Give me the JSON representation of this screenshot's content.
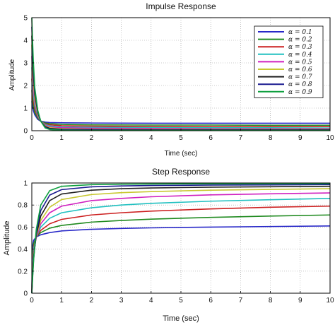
{
  "chart_data": [
    {
      "type": "line",
      "title": "Impulse Response",
      "xlabel": "Time (sec)",
      "ylabel": "Amplitude",
      "xlim": [
        0,
        10
      ],
      "ylim": [
        0,
        5
      ],
      "xticks": [
        "0",
        "1",
        "2",
        "3",
        "4",
        "5",
        "6",
        "7",
        "8",
        "9",
        "10"
      ],
      "yticks": [
        "0",
        "1",
        "2",
        "3",
        "4",
        "5"
      ],
      "legend_position": "top-right",
      "legend": [
        "α = 0.1",
        "α = 0.2",
        "α = 0.3",
        "α = 0.4",
        "α = 0.5",
        "α = 0.6",
        "α = 0.7",
        "α = 0.8",
        "α = 0.9"
      ],
      "series": [
        {
          "name": "α = 0.1",
          "color": "#2828c8",
          "x": [
            0,
            0.02,
            0.05,
            0.1,
            0.2,
            0.3,
            0.45,
            0.6,
            1,
            2,
            4,
            6,
            8,
            10
          ],
          "y": [
            1.3,
            1.1,
            0.9,
            0.7,
            0.5,
            0.42,
            0.38,
            0.36,
            0.35,
            0.34,
            0.33,
            0.33,
            0.33,
            0.33
          ]
        },
        {
          "name": "α = 0.2",
          "color": "#1f8a1f",
          "x": [
            0,
            0.02,
            0.05,
            0.1,
            0.2,
            0.3,
            0.45,
            0.6,
            1,
            2,
            4,
            6,
            8,
            10
          ],
          "y": [
            1.8,
            1.4,
            1.1,
            0.8,
            0.55,
            0.42,
            0.34,
            0.31,
            0.28,
            0.26,
            0.25,
            0.25,
            0.24,
            0.24
          ]
        },
        {
          "name": "α = 0.3",
          "color": "#cc2020",
          "x": [
            0,
            0.02,
            0.05,
            0.1,
            0.2,
            0.3,
            0.45,
            0.6,
            1,
            2,
            4,
            6,
            8,
            10
          ],
          "y": [
            2.3,
            1.8,
            1.35,
            0.95,
            0.6,
            0.42,
            0.3,
            0.26,
            0.22,
            0.2,
            0.19,
            0.18,
            0.18,
            0.18
          ]
        },
        {
          "name": "α = 0.4",
          "color": "#20c0c0",
          "x": [
            0,
            0.02,
            0.05,
            0.1,
            0.2,
            0.3,
            0.45,
            0.6,
            1,
            2,
            4,
            6,
            8,
            10
          ],
          "y": [
            2.8,
            2.2,
            1.6,
            1.1,
            0.65,
            0.42,
            0.27,
            0.21,
            0.17,
            0.15,
            0.14,
            0.13,
            0.13,
            0.12
          ]
        },
        {
          "name": "α = 0.5",
          "color": "#d020c0",
          "x": [
            0,
            0.02,
            0.05,
            0.1,
            0.2,
            0.3,
            0.45,
            0.6,
            1,
            2,
            4,
            6,
            8,
            10
          ],
          "y": [
            3.3,
            2.6,
            1.9,
            1.25,
            0.7,
            0.42,
            0.24,
            0.17,
            0.13,
            0.11,
            0.1,
            0.09,
            0.09,
            0.09
          ]
        },
        {
          "name": "α = 0.6",
          "color": "#c8c830",
          "x": [
            0,
            0.02,
            0.05,
            0.1,
            0.2,
            0.3,
            0.45,
            0.6,
            1,
            2,
            4,
            6,
            8,
            10
          ],
          "y": [
            3.8,
            3.0,
            2.2,
            1.4,
            0.75,
            0.42,
            0.21,
            0.13,
            0.09,
            0.07,
            0.06,
            0.06,
            0.06,
            0.06
          ]
        },
        {
          "name": "α = 0.7",
          "color": "#202020",
          "x": [
            0,
            0.02,
            0.05,
            0.1,
            0.2,
            0.3,
            0.45,
            0.6,
            1,
            2,
            4,
            6,
            8,
            10
          ],
          "y": [
            4.2,
            3.4,
            2.5,
            1.6,
            0.8,
            0.42,
            0.18,
            0.1,
            0.06,
            0.05,
            0.04,
            0.04,
            0.04,
            0.04
          ]
        },
        {
          "name": "α = 0.8",
          "color": "#1a1a90",
          "x": [
            0,
            0.02,
            0.05,
            0.1,
            0.2,
            0.3,
            0.45,
            0.6,
            1,
            2,
            4,
            6,
            8,
            10
          ],
          "y": [
            4.6,
            3.8,
            2.8,
            1.75,
            0.85,
            0.42,
            0.15,
            0.07,
            0.04,
            0.03,
            0.02,
            0.02,
            0.02,
            0.02
          ]
        },
        {
          "name": "α = 0.9",
          "color": "#10a040",
          "x": [
            0,
            0.02,
            0.05,
            0.1,
            0.2,
            0.3,
            0.45,
            0.6,
            1,
            2,
            4,
            6,
            8,
            10
          ],
          "y": [
            5.0,
            4.2,
            3.1,
            1.9,
            0.9,
            0.42,
            0.12,
            0.05,
            0.02,
            0.01,
            0.01,
            0.01,
            0.01,
            0.01
          ]
        }
      ]
    },
    {
      "type": "line",
      "title": "Step Response",
      "xlabel": "Time (sec)",
      "ylabel": "Amplitude",
      "xlim": [
        0,
        10
      ],
      "ylim": [
        0,
        1
      ],
      "xticks": [
        "0",
        "1",
        "2",
        "3",
        "4",
        "5",
        "6",
        "7",
        "8",
        "9",
        "10"
      ],
      "yticks": [
        "0",
        "0.2",
        "0.4",
        "0.6",
        "0.8",
        "1"
      ],
      "series": [
        {
          "name": "α = 0.1",
          "color": "#2828c8",
          "x": [
            0,
            0.02,
            0.06,
            0.15,
            0.3,
            0.6,
            1,
            2,
            3,
            4,
            6,
            8,
            10
          ],
          "y": [
            0,
            0.42,
            0.48,
            0.51,
            0.53,
            0.55,
            0.565,
            0.58,
            0.588,
            0.593,
            0.6,
            0.605,
            0.61
          ]
        },
        {
          "name": "α = 0.2",
          "color": "#1f8a1f",
          "x": [
            0,
            0.02,
            0.06,
            0.15,
            0.3,
            0.6,
            1,
            2,
            3,
            4,
            6,
            8,
            10
          ],
          "y": [
            0,
            0.36,
            0.45,
            0.51,
            0.55,
            0.59,
            0.615,
            0.645,
            0.66,
            0.672,
            0.688,
            0.7,
            0.71
          ]
        },
        {
          "name": "α = 0.3",
          "color": "#cc2020",
          "x": [
            0,
            0.02,
            0.06,
            0.15,
            0.3,
            0.6,
            1,
            2,
            3,
            4,
            6,
            8,
            10
          ],
          "y": [
            0,
            0.3,
            0.42,
            0.51,
            0.57,
            0.63,
            0.67,
            0.71,
            0.73,
            0.745,
            0.765,
            0.78,
            0.79
          ]
        },
        {
          "name": "α = 0.4",
          "color": "#20c0c0",
          "x": [
            0,
            0.02,
            0.06,
            0.15,
            0.3,
            0.6,
            1,
            2,
            3,
            4,
            6,
            8,
            10
          ],
          "y": [
            0,
            0.26,
            0.4,
            0.51,
            0.6,
            0.68,
            0.73,
            0.775,
            0.8,
            0.815,
            0.835,
            0.848,
            0.86
          ]
        },
        {
          "name": "α = 0.5",
          "color": "#d020c0",
          "x": [
            0,
            0.02,
            0.06,
            0.15,
            0.3,
            0.6,
            1,
            2,
            3,
            4,
            6,
            8,
            10
          ],
          "y": [
            0,
            0.22,
            0.37,
            0.51,
            0.63,
            0.73,
            0.79,
            0.84,
            0.86,
            0.875,
            0.892,
            0.902,
            0.91
          ]
        },
        {
          "name": "α = 0.6",
          "color": "#c8c830",
          "x": [
            0,
            0.02,
            0.06,
            0.15,
            0.3,
            0.6,
            1,
            2,
            3,
            4,
            6,
            8,
            10
          ],
          "y": [
            0,
            0.18,
            0.35,
            0.52,
            0.66,
            0.78,
            0.85,
            0.895,
            0.912,
            0.922,
            0.935,
            0.942,
            0.948
          ]
        },
        {
          "name": "α = 0.7",
          "color": "#202020",
          "x": [
            0,
            0.02,
            0.06,
            0.15,
            0.3,
            0.6,
            1,
            2,
            3,
            4,
            6,
            8,
            10
          ],
          "y": [
            0,
            0.15,
            0.33,
            0.53,
            0.7,
            0.84,
            0.9,
            0.935,
            0.948,
            0.955,
            0.962,
            0.966,
            0.97
          ]
        },
        {
          "name": "α = 0.8",
          "color": "#1a1a90",
          "x": [
            0,
            0.02,
            0.06,
            0.15,
            0.3,
            0.6,
            1,
            2,
            3,
            4,
            6,
            8,
            10
          ],
          "y": [
            0,
            0.12,
            0.31,
            0.55,
            0.75,
            0.89,
            0.94,
            0.965,
            0.973,
            0.977,
            0.981,
            0.983,
            0.985
          ]
        },
        {
          "name": "α = 0.9",
          "color": "#10a040",
          "x": [
            0,
            0.02,
            0.06,
            0.15,
            0.3,
            0.6,
            1,
            2,
            3,
            4,
            6,
            8,
            10
          ],
          "y": [
            0,
            0.1,
            0.3,
            0.58,
            0.8,
            0.93,
            0.97,
            0.985,
            0.989,
            0.991,
            0.993,
            0.994,
            0.995
          ]
        }
      ]
    }
  ]
}
